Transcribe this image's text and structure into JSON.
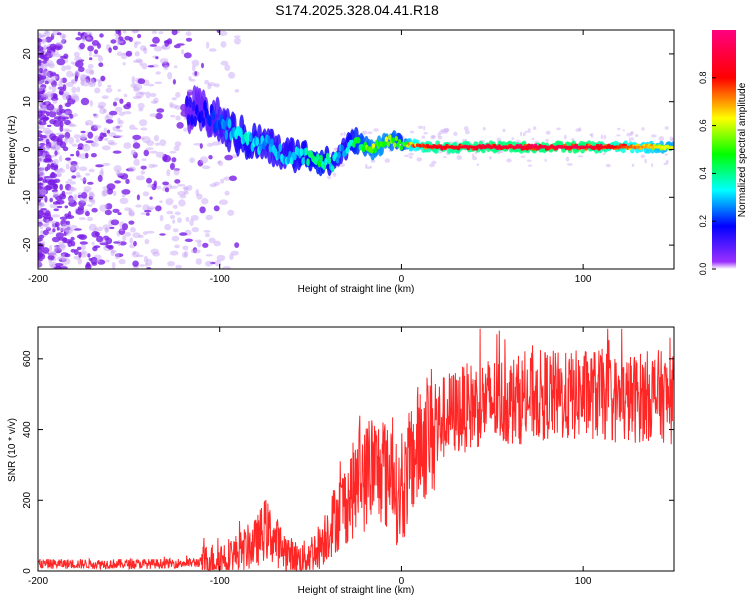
{
  "figure": {
    "title": "S174.2025.328.04.41.R18"
  },
  "colors": {
    "signal": "#ff0000",
    "background": "#ffffff",
    "axis": "#000000"
  },
  "chart_data": [
    {
      "type": "heatmap",
      "title": "S174.2025.328.04.41.R18",
      "xlabel": "Height of straight line (km)",
      "ylabel": "Frequency (Hz)",
      "xlim": [
        -200,
        150
      ],
      "ylim": [
        -25,
        25
      ],
      "xticks": [
        -200,
        -100,
        0,
        100
      ],
      "yticks": [
        20,
        10,
        0,
        -10,
        -20
      ],
      "xtick_labels": [
        "-200",
        "-100",
        "0",
        "100"
      ],
      "ytick_labels": [
        "20",
        "10",
        "0",
        "-10",
        "-20"
      ],
      "colorbar": {
        "label": "Normalized spectral amplitude",
        "range": [
          0.0,
          1.0
        ],
        "ticks": [
          0.0,
          0.2,
          0.4,
          0.6,
          0.8
        ],
        "tick_labels": [
          "0.0",
          "0.2",
          "0.4",
          "0.6",
          "0.8"
        ],
        "colormap": [
          "#ffffff",
          "#8f00ff",
          "#0000ff",
          "#00ffff",
          "#00ff00",
          "#ffff00",
          "#ff0000",
          "#ff0080"
        ]
      },
      "ridge": {
        "description": "dominant frequency band vs height",
        "x": [
          -115,
          -105,
          -95,
          -85,
          -75,
          -65,
          -55,
          -45,
          -38,
          -32,
          -25,
          -18,
          -12,
          -5,
          0,
          5,
          15,
          50,
          100,
          150
        ],
        "y": [
          8,
          7,
          4,
          2,
          1,
          -1,
          -1,
          -2,
          -3,
          0,
          2,
          0,
          1,
          2,
          1,
          1,
          0.5,
          0.5,
          0.5,
          0.5
        ],
        "amplitude": [
          0.15,
          0.2,
          0.3,
          0.35,
          0.3,
          0.3,
          0.35,
          0.45,
          0.35,
          0.3,
          0.45,
          0.55,
          0.6,
          0.55,
          0.45,
          0.7,
          0.85,
          0.9,
          0.92,
          0.6
        ]
      }
    },
    {
      "type": "line",
      "title": "",
      "xlabel": "Height of straight line (km)",
      "ylabel": "SNR (10 * v/v)",
      "xlim": [
        -200,
        150
      ],
      "ylim": [
        0,
        690
      ],
      "xticks": [
        -200,
        -100,
        0,
        100
      ],
      "yticks": [
        0,
        200,
        400,
        600
      ],
      "xtick_labels": [
        "-200",
        "-100",
        "0",
        "100"
      ],
      "ytick_labels": [
        "0",
        "200",
        "400",
        "600"
      ],
      "series": [
        {
          "name": "SNR",
          "x": [
            -200,
            -180,
            -160,
            -140,
            -120,
            -110,
            -100,
            -90,
            -80,
            -75,
            -70,
            -65,
            -60,
            -55,
            -50,
            -45,
            -40,
            -35,
            -30,
            -25,
            -22,
            -20,
            -18,
            -15,
            -12,
            -10,
            -8,
            -5,
            -3,
            0,
            3,
            5,
            8,
            10,
            15,
            20,
            25,
            30,
            40,
            50,
            60,
            70,
            80,
            90,
            100,
            110,
            120,
            130,
            140,
            150
          ],
          "y": [
            20,
            20,
            20,
            20,
            22,
            25,
            35,
            50,
            80,
            120,
            90,
            60,
            40,
            30,
            50,
            70,
            120,
            160,
            200,
            240,
            290,
            250,
            300,
            290,
            280,
            310,
            250,
            330,
            220,
            200,
            270,
            300,
            340,
            360,
            390,
            420,
            440,
            450,
            470,
            480,
            480,
            490,
            500,
            490,
            500,
            500,
            480,
            490,
            500,
            480
          ]
        }
      ]
    }
  ]
}
